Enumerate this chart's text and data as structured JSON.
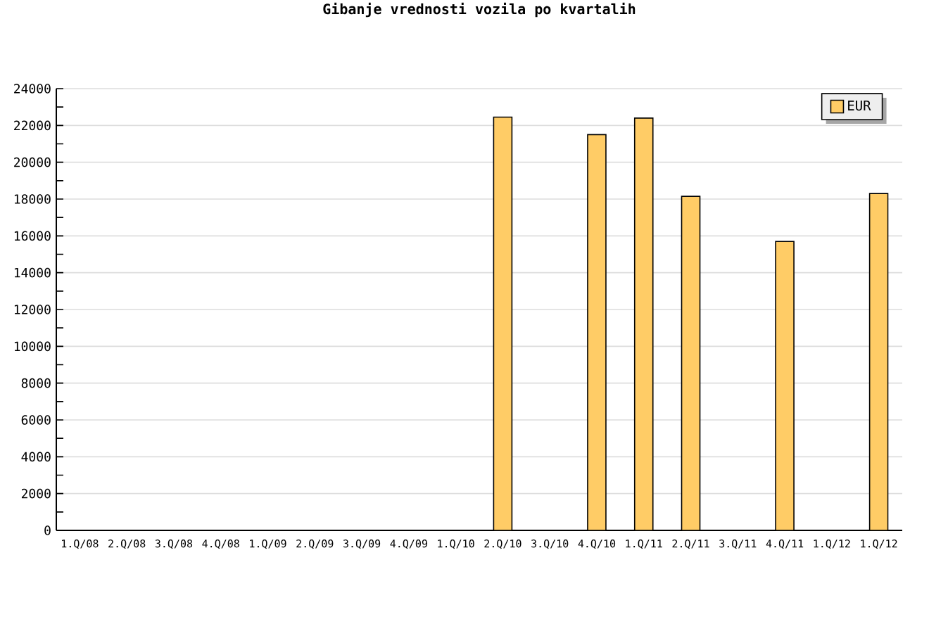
{
  "chart_data": {
    "type": "bar",
    "title": "Gibanje vrednosti vozila po kvartalih",
    "categories": [
      "1.Q/08",
      "2.Q/08",
      "3.Q/08",
      "4.Q/08",
      "1.Q/09",
      "2.Q/09",
      "3.Q/09",
      "4.Q/09",
      "1.Q/10",
      "2.Q/10",
      "3.Q/10",
      "4.Q/10",
      "1.Q/11",
      "2.Q/11",
      "3.Q/11",
      "4.Q/11",
      "1.Q/12",
      "1.Q/12"
    ],
    "series": [
      {
        "name": "EUR",
        "color": "#ffcc66",
        "values": [
          null,
          null,
          null,
          null,
          null,
          null,
          null,
          null,
          null,
          22450,
          null,
          21500,
          22400,
          18150,
          null,
          15700,
          null,
          18300
        ]
      }
    ],
    "ylim": [
      0,
      24000
    ],
    "yticks": [
      0,
      2000,
      4000,
      6000,
      8000,
      10000,
      12000,
      14000,
      16000,
      18000,
      20000,
      22000,
      24000
    ],
    "grid": "y",
    "legend": "top right"
  }
}
